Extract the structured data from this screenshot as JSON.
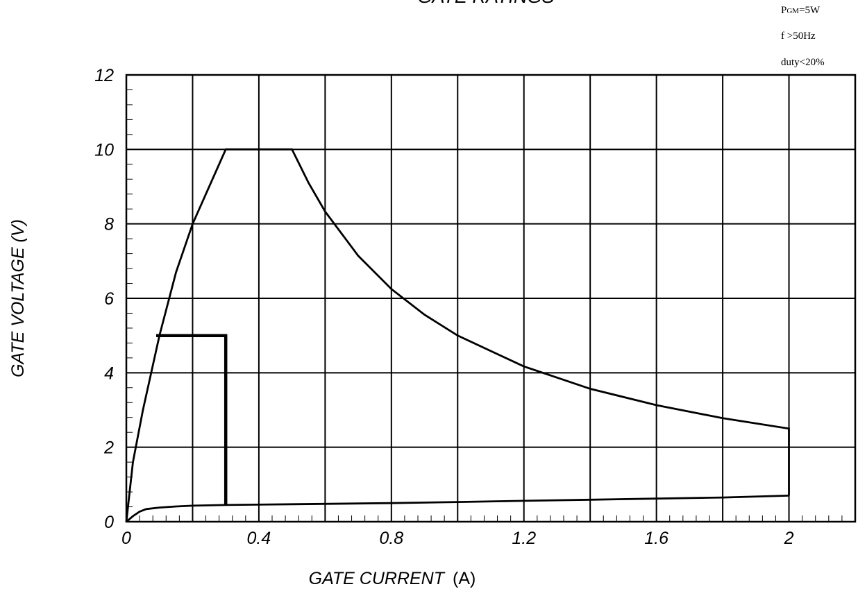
{
  "chart_data": {
    "type": "line",
    "title": "GATE RATINGS",
    "xlabel": "GATE CURRENT",
    "xlabel_unit": "(A)",
    "ylabel": "GATE VOLTAGE (V)",
    "xlim": [
      0,
      2.2
    ],
    "ylim": [
      0,
      12
    ],
    "x_ticks": [
      0,
      0.4,
      0.8,
      1.2,
      1.6,
      2
    ],
    "x_tick_labels": [
      "0",
      "0.4",
      "0.8",
      "1.2",
      "1.6",
      "2"
    ],
    "y_ticks": [
      0,
      2,
      4,
      6,
      8,
      10,
      12
    ],
    "y_tick_labels": [
      "0",
      "2",
      "4",
      "6",
      "8",
      "10",
      "12"
    ],
    "grid": true,
    "grid_major_x": 0.2,
    "grid_major_y": 2,
    "grid_minor_x": 0.04,
    "grid_minor_y": 0.4,
    "annotations": {
      "pgm_prefix": "P",
      "pgm_sub": "GM",
      "pgm_value": "=5W",
      "freq": "f >50Hz",
      "duty": "duty<20%"
    },
    "series": [
      {
        "name": "",
        "stroke_width": 2.8,
        "x": [
          0,
          0.02,
          0.05,
          0.1,
          0.15,
          0.2,
          0.3,
          0.5,
          0.55,
          0.6,
          0.7,
          0.8,
          0.9,
          1.0,
          1.2,
          1.4,
          1.6,
          1.8,
          2.0,
          2.0
        ],
        "y": [
          0,
          1.6,
          3.0,
          5.0,
          6.7,
          8.0,
          10.0,
          10.0,
          9.1,
          8.33,
          7.14,
          6.25,
          5.56,
          5.0,
          4.17,
          3.57,
          3.13,
          2.78,
          2.5,
          0.7
        ]
      },
      {
        "name": "",
        "stroke_width": 2.8,
        "x": [
          0,
          0.02,
          0.04,
          0.06,
          0.1,
          0.15,
          0.2,
          0.3,
          0.5,
          0.8,
          1.0,
          1.2,
          1.4,
          1.6,
          1.8,
          2.0
        ],
        "y": [
          0,
          0.15,
          0.27,
          0.34,
          0.38,
          0.41,
          0.43,
          0.45,
          0.47,
          0.5,
          0.53,
          0.56,
          0.59,
          0.62,
          0.65,
          0.7
        ]
      },
      {
        "name": "",
        "stroke_width": 4.5,
        "x": [
          0.09,
          0.3,
          0.3
        ],
        "y": [
          5,
          5,
          0.45
        ]
      }
    ]
  }
}
